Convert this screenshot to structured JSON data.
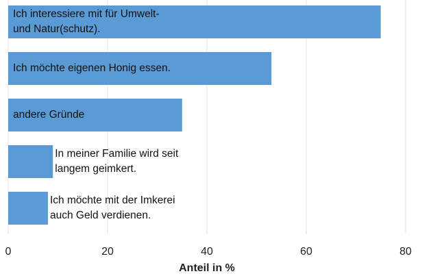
{
  "chart_data": {
    "type": "bar",
    "orientation": "horizontal",
    "categories": [
      "Ich interessiere mit für Umwelt-\nund Natur(schutz).",
      "Ich möchte eigenen Honig essen.",
      "andere Gründe",
      "In meiner Familie wird seit\nlangem geimkert.",
      "Ich möchte mit der Imkerei\nauch Geld verdienen."
    ],
    "values": [
      75,
      53,
      35,
      9,
      8
    ],
    "color": "#5b9bd5",
    "xlabel": "Anteil in %",
    "xlim": [
      0,
      80
    ],
    "xticks": [
      0,
      20,
      40,
      60,
      80
    ],
    "grid": true
  }
}
